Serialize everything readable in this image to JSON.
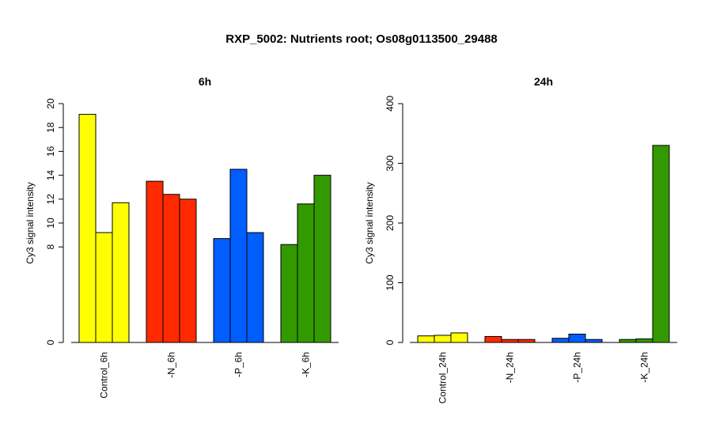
{
  "figure": {
    "title": "RXP_5002: Nutrients root; Os08g0113500_29488"
  },
  "chart_data": [
    {
      "type": "bar",
      "title": "6h",
      "ylabel": "Cy3 signal intensity",
      "xlabel": "",
      "ylim": [
        0,
        20
      ],
      "yticks": [
        0,
        8,
        10,
        12,
        14,
        16,
        18,
        20
      ],
      "grid": false,
      "groups": [
        {
          "label": "Control_6h",
          "color": "#ffff00",
          "values": [
            19.1,
            9.2,
            11.7
          ]
        },
        {
          "label": "-N_6h",
          "color": "#ff2a00",
          "values": [
            13.5,
            12.4,
            12.0
          ]
        },
        {
          "label": "-P_6h",
          "color": "#005eff",
          "values": [
            8.7,
            14.5,
            9.2
          ]
        },
        {
          "label": "-K_6h",
          "color": "#339900",
          "values": [
            8.2,
            11.6,
            14.0
          ]
        }
      ]
    },
    {
      "type": "bar",
      "title": "24h",
      "ylabel": "Cy3 signal intensity",
      "xlabel": "",
      "ylim": [
        0,
        400
      ],
      "yticks": [
        0,
        100,
        200,
        300,
        400
      ],
      "grid": false,
      "groups": [
        {
          "label": "Control_24h",
          "color": "#ffff00",
          "values": [
            11,
            12,
            16
          ]
        },
        {
          "label": "-N_24h",
          "color": "#ff2a00",
          "values": [
            10,
            5,
            5
          ]
        },
        {
          "label": "-P_24h",
          "color": "#005eff",
          "values": [
            7,
            14,
            5
          ]
        },
        {
          "label": "-K_24h",
          "color": "#339900",
          "values": [
            5,
            6,
            330
          ]
        }
      ]
    }
  ]
}
